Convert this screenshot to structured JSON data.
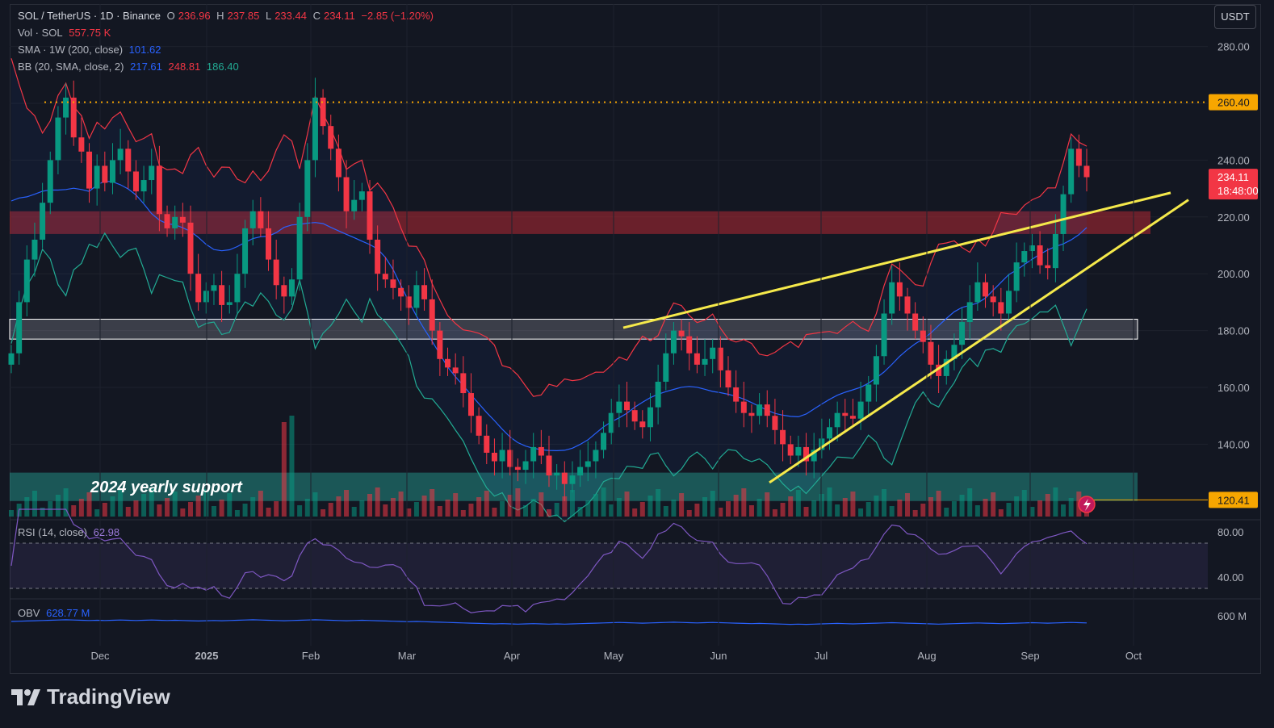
{
  "header": {
    "symbol": "SOL / TetherUS · 1D · Binance",
    "open_label": "O",
    "open": "236.96",
    "high_label": "H",
    "high": "237.85",
    "low_label": "L",
    "low": "233.44",
    "close_label": "C",
    "close": "234.11",
    "change": "−2.85 (−1.20%)",
    "vol_label": "Vol · SOL",
    "vol": "557.75 K",
    "sma_label": "SMA · 1W (200, close)",
    "sma": "101.62",
    "bb_label": "BB (20, SMA, close, 2)",
    "bb_basis": "217.61",
    "bb_upper": "248.81",
    "bb_lower": "186.40"
  },
  "unit_button": "USDT",
  "rsi_legend": {
    "label": "RSI (14, close)",
    "value": "62.98"
  },
  "obv_legend": {
    "label": "OBV",
    "value": "628.77 M"
  },
  "annotation": "2024 yearly support",
  "brand": "TradingView",
  "colors": {
    "up": "#089981",
    "down": "#f23645",
    "trendline": "#f5e94b",
    "level": "#f7a600",
    "bb_upper": "#f23645",
    "bb_basis": "#2962ff",
    "bb_lower": "#22ab94",
    "rsi": "#7e57c2",
    "obv": "#2962ff"
  },
  "chart_data": {
    "type": "candlestick",
    "y_axis": {
      "min": 110,
      "max": 290,
      "ticks": [
        "280.00",
        "260.00",
        "240.00",
        "220.00",
        "200.00",
        "180.00",
        "160.00",
        "140.00"
      ]
    },
    "x_ticks": [
      "Dec",
      "2025",
      "Feb",
      "Mar",
      "Apr",
      "May",
      "Jun",
      "Jul",
      "Aug",
      "Sep",
      "Oct"
    ],
    "price_labels": {
      "level_top": "260.40",
      "current": "234.11",
      "countdown": "18:48:00",
      "level_bottom": "120.41"
    },
    "closes": [
      172,
      190,
      205,
      212,
      225,
      240,
      255,
      262,
      248,
      243,
      230,
      238,
      232,
      240,
      244,
      236,
      229,
      233,
      238,
      221,
      216,
      220,
      218,
      200,
      190,
      194,
      196,
      189,
      190,
      200,
      216,
      222,
      216,
      205,
      196,
      192,
      198,
      220,
      240,
      262,
      252,
      244,
      234,
      222,
      226,
      229,
      212,
      200,
      198,
      195,
      192,
      188,
      196,
      191,
      180,
      170,
      167,
      165,
      158,
      150,
      143,
      137,
      134,
      138,
      132,
      131,
      134,
      139,
      136,
      129,
      130,
      126,
      129,
      132,
      134,
      138,
      144,
      151,
      155,
      152,
      148,
      146,
      153,
      162,
      172,
      180,
      178,
      172,
      168,
      170,
      174,
      166,
      160,
      155,
      151,
      150,
      154,
      150,
      145,
      140,
      136,
      139,
      134,
      138,
      142,
      146,
      151,
      150,
      149,
      155,
      161,
      171,
      186,
      197,
      192,
      186,
      180,
      176,
      168,
      164,
      170,
      175,
      183,
      190,
      197,
      192,
      190,
      186,
      194,
      204,
      208,
      210,
      203,
      202,
      214,
      228,
      244,
      238,
      234
    ],
    "zones": [
      {
        "name": "resistance-zone",
        "from": 214,
        "to": 222
      },
      {
        "name": "support-zone",
        "from": 177,
        "to": 184
      },
      {
        "name": "2024 yearly support",
        "from": 120,
        "to": 130
      }
    ],
    "rsi": {
      "value": 62.98,
      "axis_ticks": [
        "80.00",
        "40.00"
      ]
    },
    "obv": {
      "value": 628.77,
      "axis_ticks": [
        "600 M"
      ]
    }
  }
}
